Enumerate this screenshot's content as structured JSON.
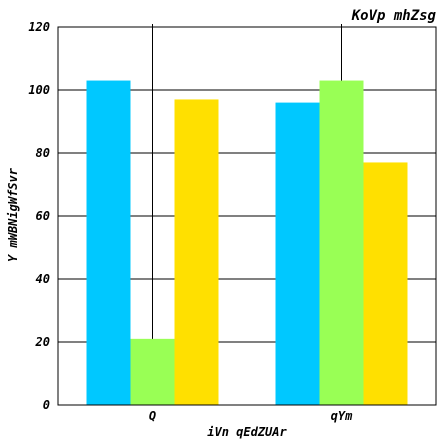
{
  "chart_data": {
    "type": "bar",
    "title": "KoVp  mhZsg",
    "xlabel": "iVn qEdZUAr",
    "ylabel": "Y mWBNigWfSvr",
    "categories": [
      "Q",
      "qYm"
    ],
    "series": [
      {
        "color": "#00C8FF",
        "values": [
          103,
          96
        ]
      },
      {
        "color": "#99FF55",
        "values": [
          21,
          103
        ]
      },
      {
        "color": "#FFE000",
        "values": [
          97,
          77
        ]
      }
    ],
    "ylim": [
      0,
      120
    ],
    "yticks": [
      0,
      20,
      40,
      60,
      80,
      100,
      120
    ],
    "grid": true,
    "legend": "none"
  }
}
